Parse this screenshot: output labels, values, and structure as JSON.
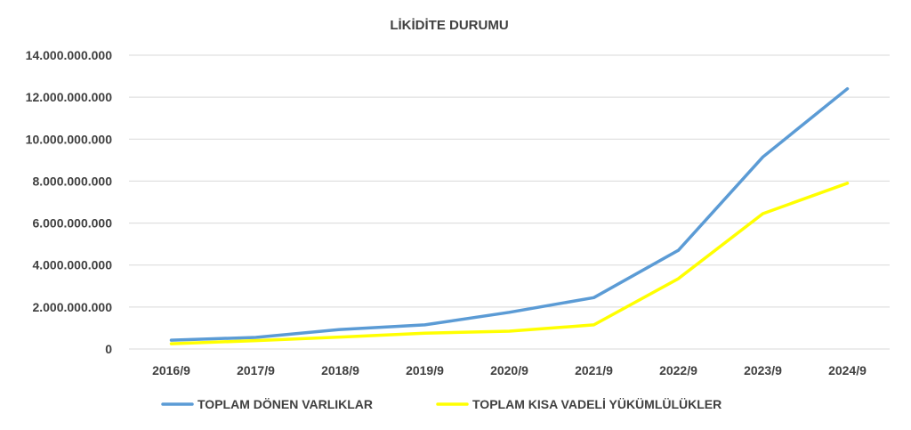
{
  "chart_data": {
    "type": "line",
    "title": "LİKİDİTE DURUMU",
    "categories": [
      "2016/9",
      "2017/9",
      "2018/9",
      "2019/9",
      "2020/9",
      "2021/9",
      "2022/9",
      "2023/9",
      "2024/9"
    ],
    "y_ticks": [
      "0",
      "2.000.000.000",
      "4.000.000.000",
      "6.000.000.000",
      "8.000.000.000",
      "10.000.000.000",
      "12.000.000.000",
      "14.000.000.000"
    ],
    "ylim": [
      0,
      14000000000
    ],
    "grid": true,
    "legend_position": "bottom",
    "series": [
      {
        "name": "TOPLAM DÖNEN VARLIKLAR",
        "color": "#5b9bd5",
        "values": [
          420000000,
          550000000,
          930000000,
          1150000000,
          1750000000,
          2450000000,
          4700000000,
          9150000000,
          12400000000
        ]
      },
      {
        "name": "TOPLAM KISA VADELİ YÜKÜMLÜLÜKLER",
        "color": "#ffff00",
        "values": [
          250000000,
          400000000,
          570000000,
          750000000,
          850000000,
          1150000000,
          3350000000,
          6450000000,
          7900000000
        ]
      }
    ]
  }
}
